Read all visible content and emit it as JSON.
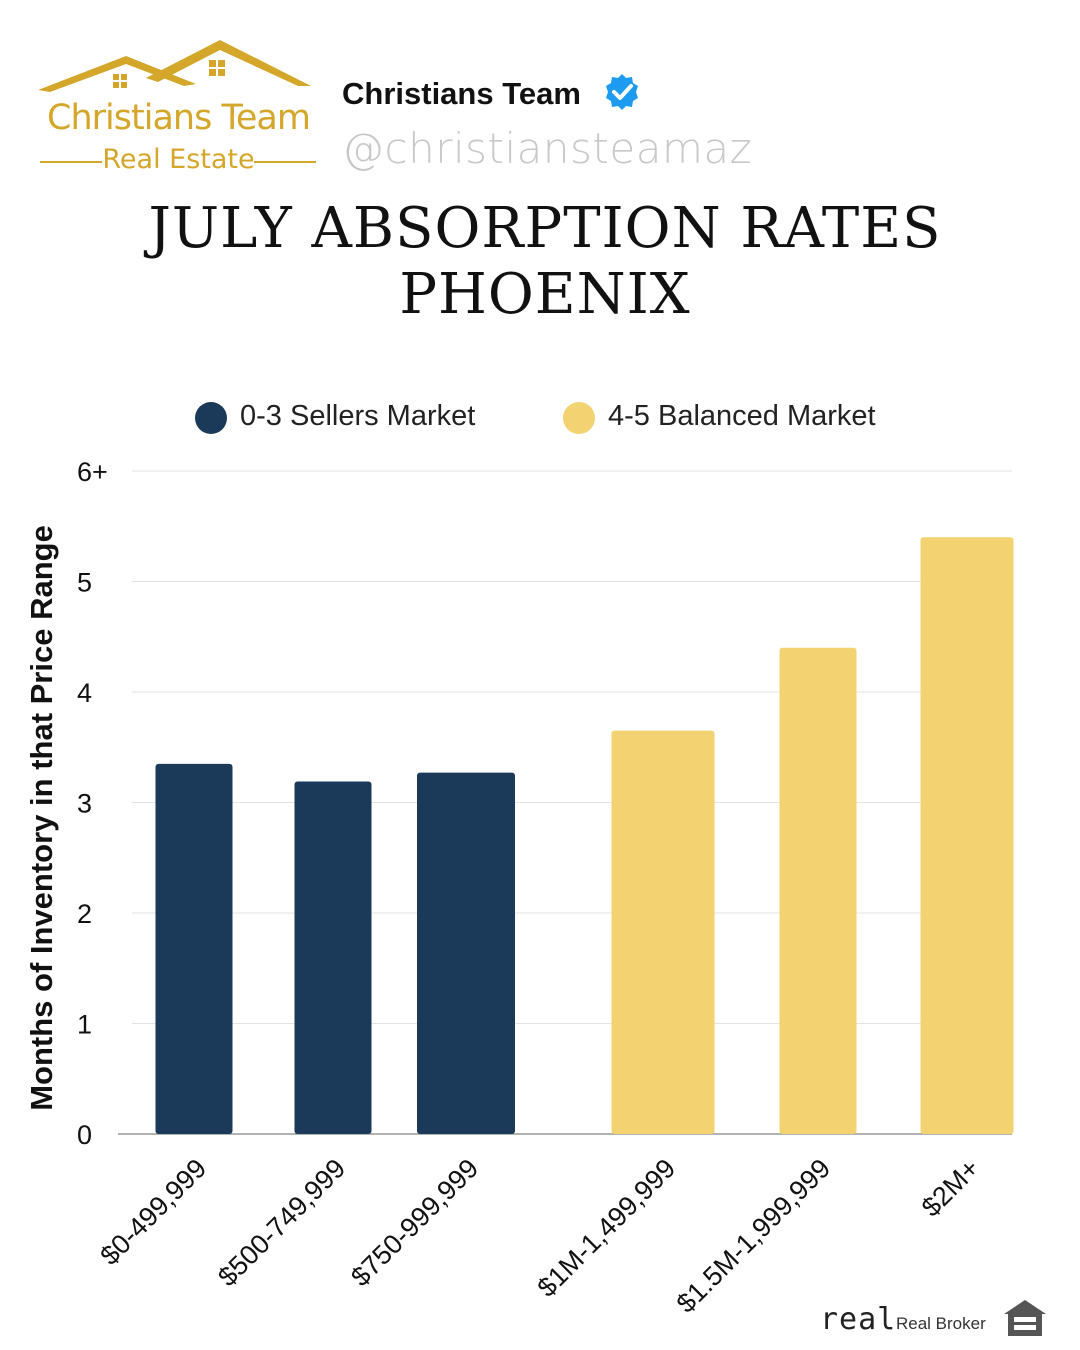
{
  "brand": {
    "logo_line1": "Christians Team",
    "logo_line2": "Real Estate",
    "account_name": "Christians Team",
    "account_handle": "@christiansteamaz",
    "logo_color": "#d4a62a",
    "verified_color": "#1d9bf0"
  },
  "title": {
    "line1": "JULY ABSORPTION RATES",
    "line2": "PHOENIX"
  },
  "legend": [
    {
      "label": "0-3 Sellers Market",
      "color": "#1b3a5a"
    },
    {
      "label": "4-5 Balanced Market",
      "color": "#f3d271"
    }
  ],
  "chart_data": {
    "type": "bar",
    "title": "JULY ABSORPTION RATES PHOENIX",
    "ylabel": "Months of Inventory in that Price Range",
    "xlabel": "",
    "categories": [
      "$0-499,999",
      "$500-749,999",
      "$750-999,999",
      "$1M-1,499,999",
      "$1.5M-1,999,999",
      "$2M+"
    ],
    "values": [
      3.35,
      3.19,
      3.27,
      3.65,
      4.4,
      5.4
    ],
    "series_of_category": [
      "0-3 Sellers Market",
      "0-3 Sellers Market",
      "0-3 Sellers Market",
      "4-5 Balanced Market",
      "4-5 Balanced Market",
      "4-5 Balanced Market"
    ],
    "ylim": [
      0,
      6
    ],
    "yticks": [
      "0",
      "1",
      "2",
      "3",
      "4",
      "5",
      "6+"
    ],
    "grid": true,
    "legend_position": "top"
  },
  "footer": {
    "broker_logo": "real",
    "broker_name": "Real Broker",
    "equal_housing_icon": "equal-housing-icon"
  }
}
